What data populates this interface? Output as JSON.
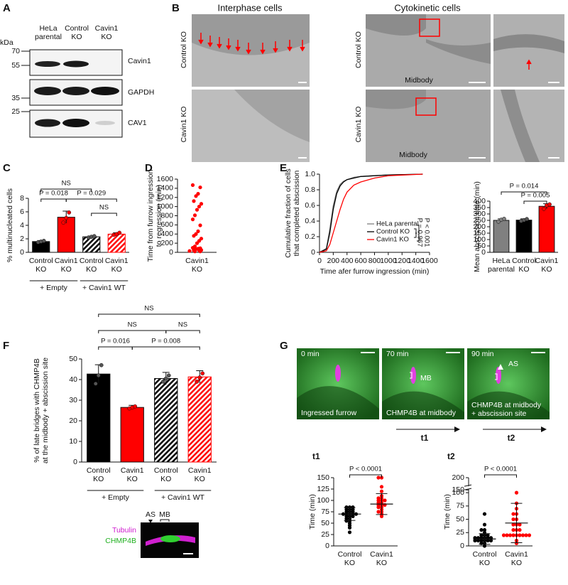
{
  "panel_letters": [
    "A",
    "B",
    "C",
    "D",
    "E",
    "F",
    "G"
  ],
  "blot": {
    "kda_label": "kDa",
    "lanes": [
      "HeLa parental",
      "Control KO",
      "Cavin1 KO"
    ],
    "markers": [
      "70",
      "55",
      "35",
      "25"
    ],
    "proteins": [
      "Cavin1",
      "GAPDH",
      "CAV1"
    ]
  },
  "micrographs": {
    "titles": [
      "Interphase cells",
      "Cytokinetic cells"
    ],
    "row_labels": [
      "Control KO",
      "Cavin1 KO",
      "Control KO",
      "Cavin1 KO"
    ],
    "midbody_labels": [
      "Midbody",
      "Midbody"
    ]
  },
  "inset_F": {
    "stains": [
      "Tubulin",
      "CHMP4B"
    ],
    "markers": [
      "AS",
      "MB"
    ]
  },
  "timelapse_G": {
    "times": [
      "0 min",
      "70 min",
      "90 min"
    ],
    "captions": [
      "Ingressed furrow",
      "CHMP4B at midbody",
      "CHMP4B at midbody",
      "+ abscission site"
    ],
    "markers": [
      "MB",
      "AS"
    ],
    "steps": [
      "t1",
      "t2"
    ]
  },
  "chart_data": [
    {
      "type": "bar",
      "ylabel": "% multinucleated cells",
      "categories": [
        "Control KO",
        "Cavin1 KO",
        "Control KO",
        "Cavin1 KO"
      ],
      "groups": [
        "+ Empty",
        "+ Cavin1 WT"
      ],
      "values": [
        1.6,
        5.2,
        2.3,
        2.7
      ],
      "errors": [
        0.15,
        0.9,
        0.1,
        0.2
      ],
      "points": [
        [
          1.5,
          1.6,
          1.7
        ],
        [
          4.4,
          5.1,
          5.9
        ],
        [
          2.2,
          2.3,
          2.4
        ],
        [
          2.6,
          2.7,
          2.9
        ]
      ],
      "colors": [
        "#000000",
        "#ff0000",
        "#000000",
        "#ff0000"
      ],
      "hatched": [
        false,
        false,
        true,
        true
      ],
      "annotations": [
        "NS",
        "P = 0.018",
        "P = 0.029",
        "NS"
      ],
      "ylim": [
        0,
        8
      ],
      "yticks": [
        0,
        2,
        4,
        6,
        8
      ]
    },
    {
      "type": "scatter",
      "ylabel": [
        "Time from furrow ingression",
        "to regression (min)"
      ],
      "categories": [
        "Cavin1 KO"
      ],
      "series": [
        {
          "name": "Cavin1 KO",
          "color": "#ff0000",
          "values": [
            1470,
            1420,
            1280,
            1230,
            1120,
            1060,
            1000,
            930,
            810,
            720,
            590,
            460,
            400,
            360,
            300,
            250,
            200,
            130,
            100,
            90,
            80,
            70,
            60,
            50,
            40,
            40,
            30,
            30,
            20,
            20
          ]
        }
      ],
      "ylim": [
        0,
        1600
      ],
      "yticks": [
        0,
        200,
        400,
        600,
        800,
        1000,
        1200,
        1400,
        1600
      ]
    },
    {
      "type": "line",
      "ylabel": [
        "Cumulative fraction of cells",
        "that completed abscission"
      ],
      "xlabel": "Time afer furrow ingression (min)",
      "x": [
        0,
        100,
        150,
        200,
        250,
        300,
        350,
        400,
        500,
        600,
        800,
        1000,
        1500
      ],
      "series": [
        {
          "name": "HeLa parental",
          "color": "#808080",
          "values": [
            0,
            0.05,
            0.3,
            0.6,
            0.78,
            0.87,
            0.91,
            0.93,
            0.96,
            0.97,
            0.98,
            0.99,
            1
          ]
        },
        {
          "name": "Control KO",
          "color": "#000000",
          "values": [
            0,
            0.04,
            0.25,
            0.55,
            0.75,
            0.85,
            0.9,
            0.93,
            0.95,
            0.97,
            0.98,
            0.99,
            1
          ]
        },
        {
          "name": "Cavin1 KO",
          "color": "#ff0000",
          "values": [
            0,
            0.02,
            0.1,
            0.25,
            0.4,
            0.55,
            0.68,
            0.77,
            0.86,
            0.9,
            0.95,
            0.98,
            1
          ]
        }
      ],
      "annotations": [
        "P = 0.967",
        "P < 0.001"
      ],
      "xlim": [
        0,
        1600
      ],
      "xticks": [
        0,
        200,
        400,
        600,
        800,
        1000,
        1200,
        1400,
        1600
      ],
      "ylim": [
        0,
        1
      ],
      "yticks": [
        0,
        0.2,
        0.4,
        0.6,
        0.8,
        {
          "value": 1,
          "label": "1.0"
        }
      ],
      "legend": "lower right"
    },
    {
      "type": "bar",
      "ylabel": "Mean abscission time (min)",
      "categories": [
        "HeLa parental",
        "Control KO",
        "Cavin1 KO"
      ],
      "values": [
        250,
        252,
        360
      ],
      "errors": [
        12,
        10,
        20
      ],
      "points": [
        [
          240,
          255,
          262
        ],
        [
          245,
          252,
          260
        ],
        [
          340,
          368,
          375
        ]
      ],
      "colors": [
        "#808080",
        "#000000",
        "#ff0000"
      ],
      "hatched": [
        false,
        false,
        false
      ],
      "annotations": [
        "P = 0.014",
        "P = 0.005"
      ],
      "ylim": [
        0,
        400
      ],
      "yticks": [
        0,
        50,
        100,
        150,
        200,
        250,
        300,
        350,
        400
      ]
    },
    {
      "type": "bar",
      "ylabel": [
        "% of late bridges with CHMP4B",
        "at the midbody + abscission site"
      ],
      "categories": [
        "Control KO",
        "Cavin1 KO",
        "Control KO",
        "Cavin1 KO"
      ],
      "groups": [
        "+ Empty",
        "+ Cavin1 WT"
      ],
      "values": [
        42.7,
        26.5,
        40.5,
        41.3
      ],
      "errors": [
        4.5,
        1,
        3,
        3
      ],
      "points": [
        [
          38,
          42,
          47
        ],
        [
          26,
          26.5,
          27
        ],
        [
          39,
          40.5,
          42
        ],
        [
          39,
          41,
          43
        ]
      ],
      "colors": [
        "#000000",
        "#ff0000",
        "#000000",
        "#ff0000"
      ],
      "hatched": [
        false,
        false,
        true,
        true
      ],
      "annotations": [
        "NS",
        "NS",
        "NS",
        "P = 0.016",
        "P = 0.008"
      ],
      "ylim": [
        0,
        50
      ],
      "yticks": [
        0,
        10,
        20,
        30,
        40,
        50
      ]
    },
    {
      "type": "scatter",
      "title": "t1",
      "ylabel": "Time (min)",
      "categories": [
        "Control KO",
        "Cavin1 KO"
      ],
      "series": [
        {
          "name": "Control KO",
          "color": "#000000",
          "values": [
            30,
            40,
            45,
            50,
            55,
            55,
            60,
            60,
            65,
            65,
            65,
            70,
            70,
            70,
            70,
            70,
            75,
            75,
            75,
            80,
            80,
            80,
            85,
            85,
            85
          ]
        },
        {
          "name": "Cavin1 KO",
          "color": "#ff0000",
          "values": [
            65,
            70,
            75,
            75,
            80,
            85,
            85,
            90,
            90,
            90,
            95,
            95,
            100,
            100,
            100,
            105,
            105,
            110,
            120,
            130,
            150,
            150
          ]
        }
      ],
      "means": [
        70,
        92
      ],
      "errors": [
        14,
        23
      ],
      "annotations": [
        "P < 0.0001"
      ],
      "ylim": [
        0,
        150
      ],
      "yticks": [
        0,
        25,
        50,
        75,
        100,
        125,
        150
      ]
    },
    {
      "type": "scatter",
      "title": "t2",
      "ylabel": "Time (min)",
      "categories": [
        "Control KO",
        "Cavin1 KO"
      ],
      "series": [
        {
          "name": "Control KO",
          "color": "#000000",
          "values": [
            0,
            5,
            5,
            10,
            10,
            10,
            10,
            10,
            10,
            15,
            15,
            15,
            15,
            15,
            15,
            20,
            20,
            20,
            25,
            30,
            30,
            40,
            60
          ]
        },
        {
          "name": "Cavin1 KO",
          "color": "#ff0000",
          "values": [
            5,
            10,
            20,
            20,
            20,
            20,
            20,
            20,
            20,
            20,
            20,
            30,
            30,
            30,
            40,
            40,
            40,
            50,
            50,
            60,
            60,
            70,
            80,
            100
          ]
        }
      ],
      "means": [
        13,
        43
      ],
      "errors": [
        10,
        37
      ],
      "annotations": [
        "P < 0.0001"
      ],
      "broken_axis": true,
      "ylim": [
        0,
        200
      ],
      "yticks": [
        0,
        25,
        50,
        75,
        100,
        150,
        200
      ]
    }
  ]
}
